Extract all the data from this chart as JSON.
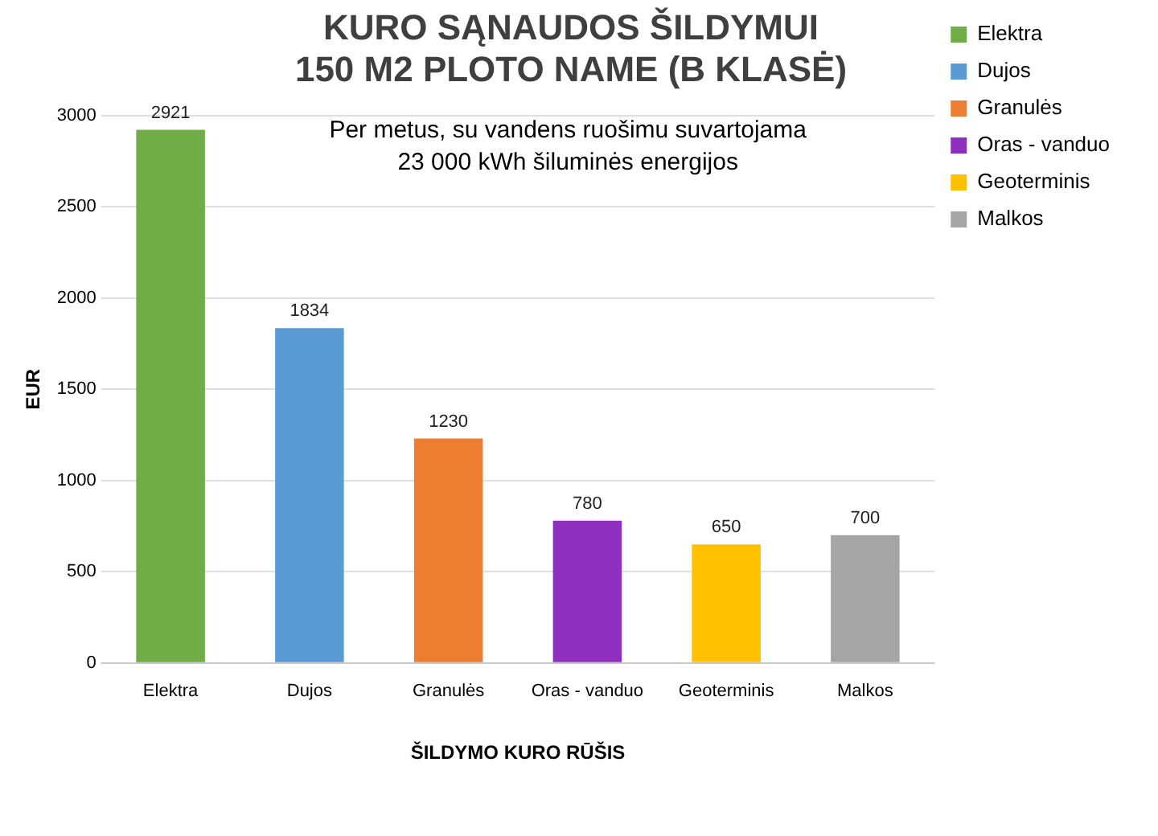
{
  "chart_data": {
    "type": "bar",
    "title": "KURO SĄNAUDOS ŠILDYMUI\n150 M2 PLOTO NAME (B KLASĖ)",
    "xlabel": "ŠILDYMO KURO RŪŠIS",
    "ylabel": "EUR",
    "annotations": [
      "Per metus, su vandens ruošimu suvartojama",
      "23 000 kWh šiluminės energijos"
    ],
    "categories": [
      "Elektra",
      "Dujos",
      "Granulės",
      "Oras - vanduo",
      "Geoterminis",
      "Malkos"
    ],
    "series": [
      {
        "name": "Elektra",
        "color": "#70ad47",
        "values": [
          2921,
          null,
          null,
          null,
          null,
          null
        ]
      },
      {
        "name": "Dujos",
        "color": "#5b9bd5",
        "values": [
          null,
          1834,
          null,
          null,
          null,
          null
        ]
      },
      {
        "name": "Granulės",
        "color": "#ed7d31",
        "values": [
          null,
          null,
          1230,
          null,
          null,
          null
        ]
      },
      {
        "name": "Oras - vanduo",
        "color": "#8e2fc0",
        "values": [
          null,
          null,
          null,
          780,
          null,
          null
        ]
      },
      {
        "name": "Geoterminis",
        "color": "#ffc000",
        "values": [
          null,
          null,
          null,
          null,
          650,
          null
        ]
      },
      {
        "name": "Malkos",
        "color": "#a5a5a5",
        "values": [
          null,
          null,
          null,
          null,
          null,
          700
        ]
      }
    ],
    "ylim": [
      0,
      3000
    ],
    "yticks": [
      0,
      500,
      1000,
      1500,
      2000,
      2500,
      3000
    ],
    "grid": "y",
    "legend": "top right",
    "data_labels": true
  }
}
